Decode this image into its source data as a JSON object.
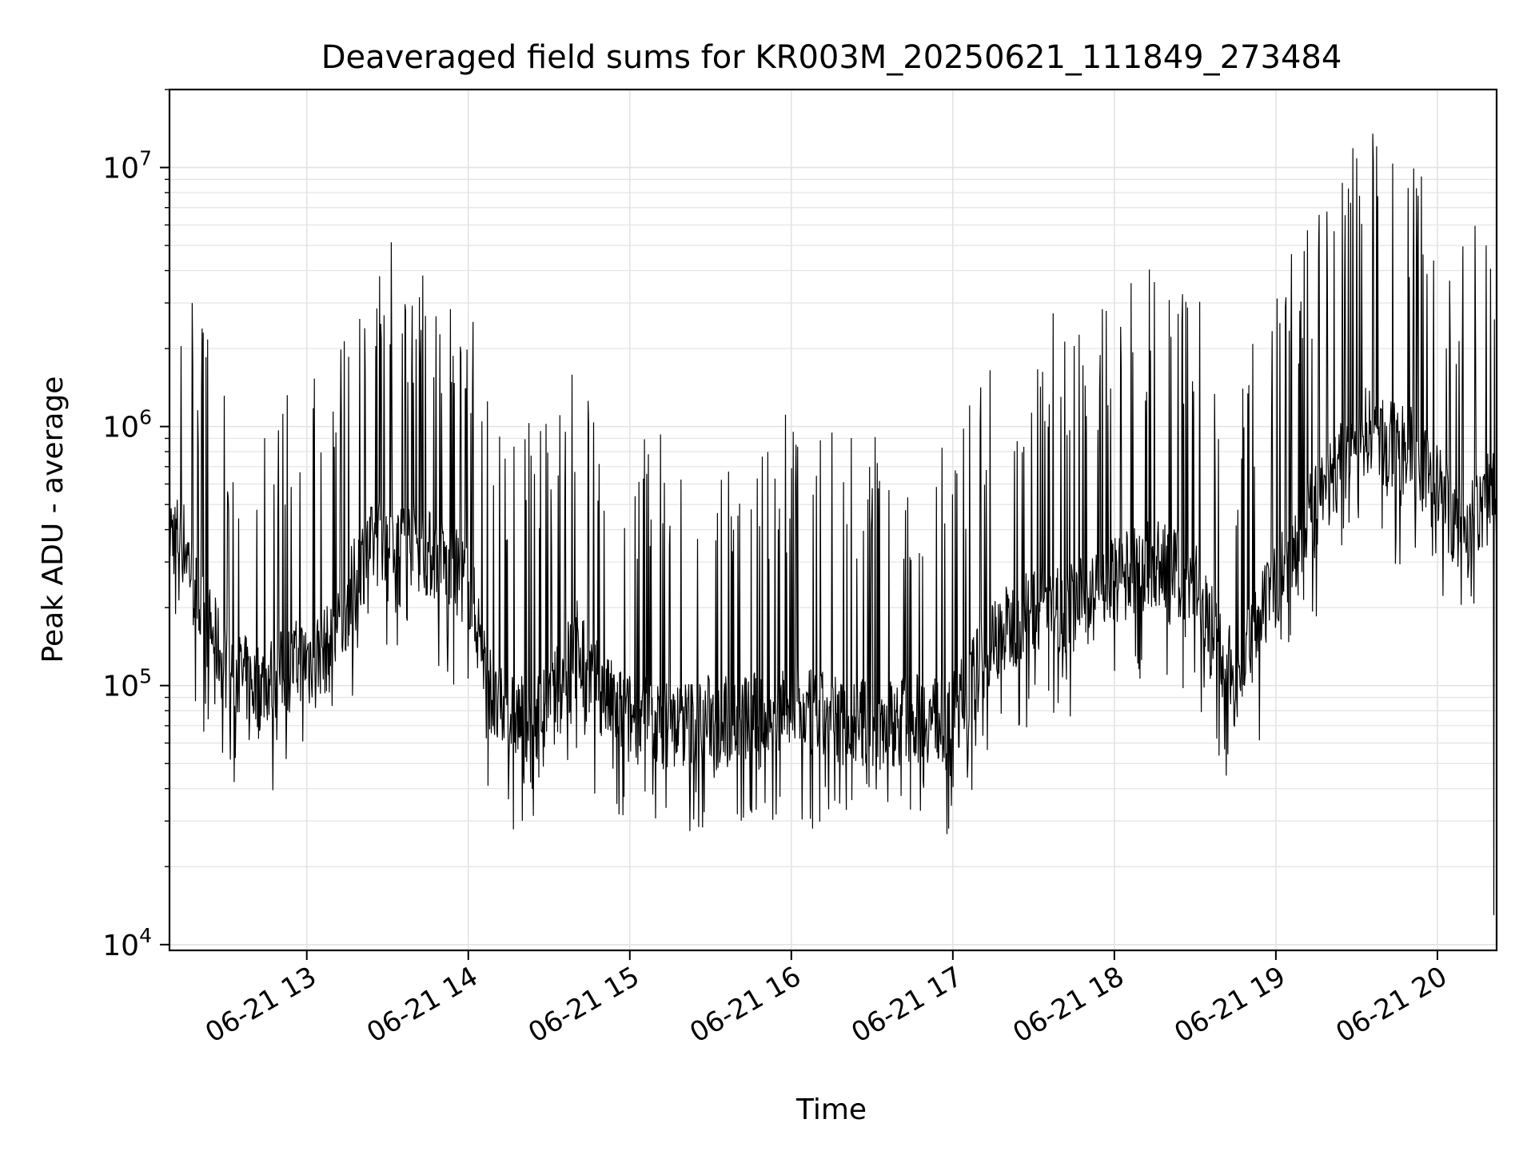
{
  "chart_data": {
    "type": "line",
    "title": "Deaveraged field sums for KR003M_20250621_111849_273484",
    "xlabel": "Time",
    "ylabel": "Peak ADU - average",
    "y_scale": "log",
    "ylim": [
      9500,
      20000000
    ],
    "xlim": [
      "2025-06-21 12:09",
      "2025-06-21 20:22"
    ],
    "x_ticks": [
      {
        "time": "2025-06-21 13:00",
        "label": "06-21 13"
      },
      {
        "time": "2025-06-21 14:00",
        "label": "06-21 14"
      },
      {
        "time": "2025-06-21 15:00",
        "label": "06-21 15"
      },
      {
        "time": "2025-06-21 16:00",
        "label": "06-21 16"
      },
      {
        "time": "2025-06-21 17:00",
        "label": "06-21 17"
      },
      {
        "time": "2025-06-21 18:00",
        "label": "06-21 18"
      },
      {
        "time": "2025-06-21 19:00",
        "label": "06-21 19"
      },
      {
        "time": "2025-06-21 20:00",
        "label": "06-21 20"
      }
    ],
    "y_ticks": [
      {
        "value": 10000,
        "base": "10",
        "exp": "4"
      },
      {
        "value": 100000,
        "base": "10",
        "exp": "5"
      },
      {
        "value": 1000000,
        "base": "10",
        "exp": "6"
      },
      {
        "value": 10000000,
        "base": "10",
        "exp": "7"
      }
    ],
    "grid": true,
    "line_color": "#000000",
    "series": [
      {
        "x": [
          "2025-06-21 12:09",
          "2025-06-21 12:15",
          "2025-06-21 12:20",
          "2025-06-21 12:30",
          "2025-06-21 12:40",
          "2025-06-21 12:50",
          "2025-06-21 13:00",
          "2025-06-21 13:10",
          "2025-06-21 13:20",
          "2025-06-21 13:30",
          "2025-06-21 13:40",
          "2025-06-21 13:50",
          "2025-06-21 14:00",
          "2025-06-21 14:10",
          "2025-06-21 14:20",
          "2025-06-21 14:30",
          "2025-06-21 14:40",
          "2025-06-21 14:50",
          "2025-06-21 15:00",
          "2025-06-21 15:15",
          "2025-06-21 15:30",
          "2025-06-21 15:45",
          "2025-06-21 16:00",
          "2025-06-21 16:15",
          "2025-06-21 16:30",
          "2025-06-21 16:45",
          "2025-06-21 17:00",
          "2025-06-21 17:15",
          "2025-06-21 17:30",
          "2025-06-21 17:45",
          "2025-06-21 18:00",
          "2025-06-21 18:15",
          "2025-06-21 18:30",
          "2025-06-21 18:45",
          "2025-06-21 19:00",
          "2025-06-21 19:10",
          "2025-06-21 19:20",
          "2025-06-21 19:30",
          "2025-06-21 19:36",
          "2025-06-21 19:40",
          "2025-06-21 19:50",
          "2025-06-21 20:00",
          "2025-06-21 20:05",
          "2025-06-21 20:10",
          "2025-06-21 20:15",
          "2025-06-21 20:20"
        ],
        "y": [
          400000,
          350000,
          200000,
          120000,
          100000,
          110000,
          130000,
          140000,
          300000,
          400000,
          350000,
          300000,
          250000,
          80000,
          75000,
          80000,
          150000,
          90000,
          75000,
          70000,
          75000,
          75000,
          80000,
          75000,
          70000,
          75000,
          75000,
          150000,
          200000,
          200000,
          250000,
          300000,
          250000,
          100000,
          250000,
          400000,
          600000,
          900000,
          1000000,
          850000,
          800000,
          600000,
          450000,
          400000,
          450000,
          600000
        ]
      }
    ],
    "spikes": [
      {
        "x": "2025-06-21 19:36",
        "y": 13500000
      },
      {
        "x": "2025-06-21 13:59",
        "y": 1400000
      },
      {
        "x": "2025-06-21 20:21",
        "y": 13000
      }
    ]
  }
}
